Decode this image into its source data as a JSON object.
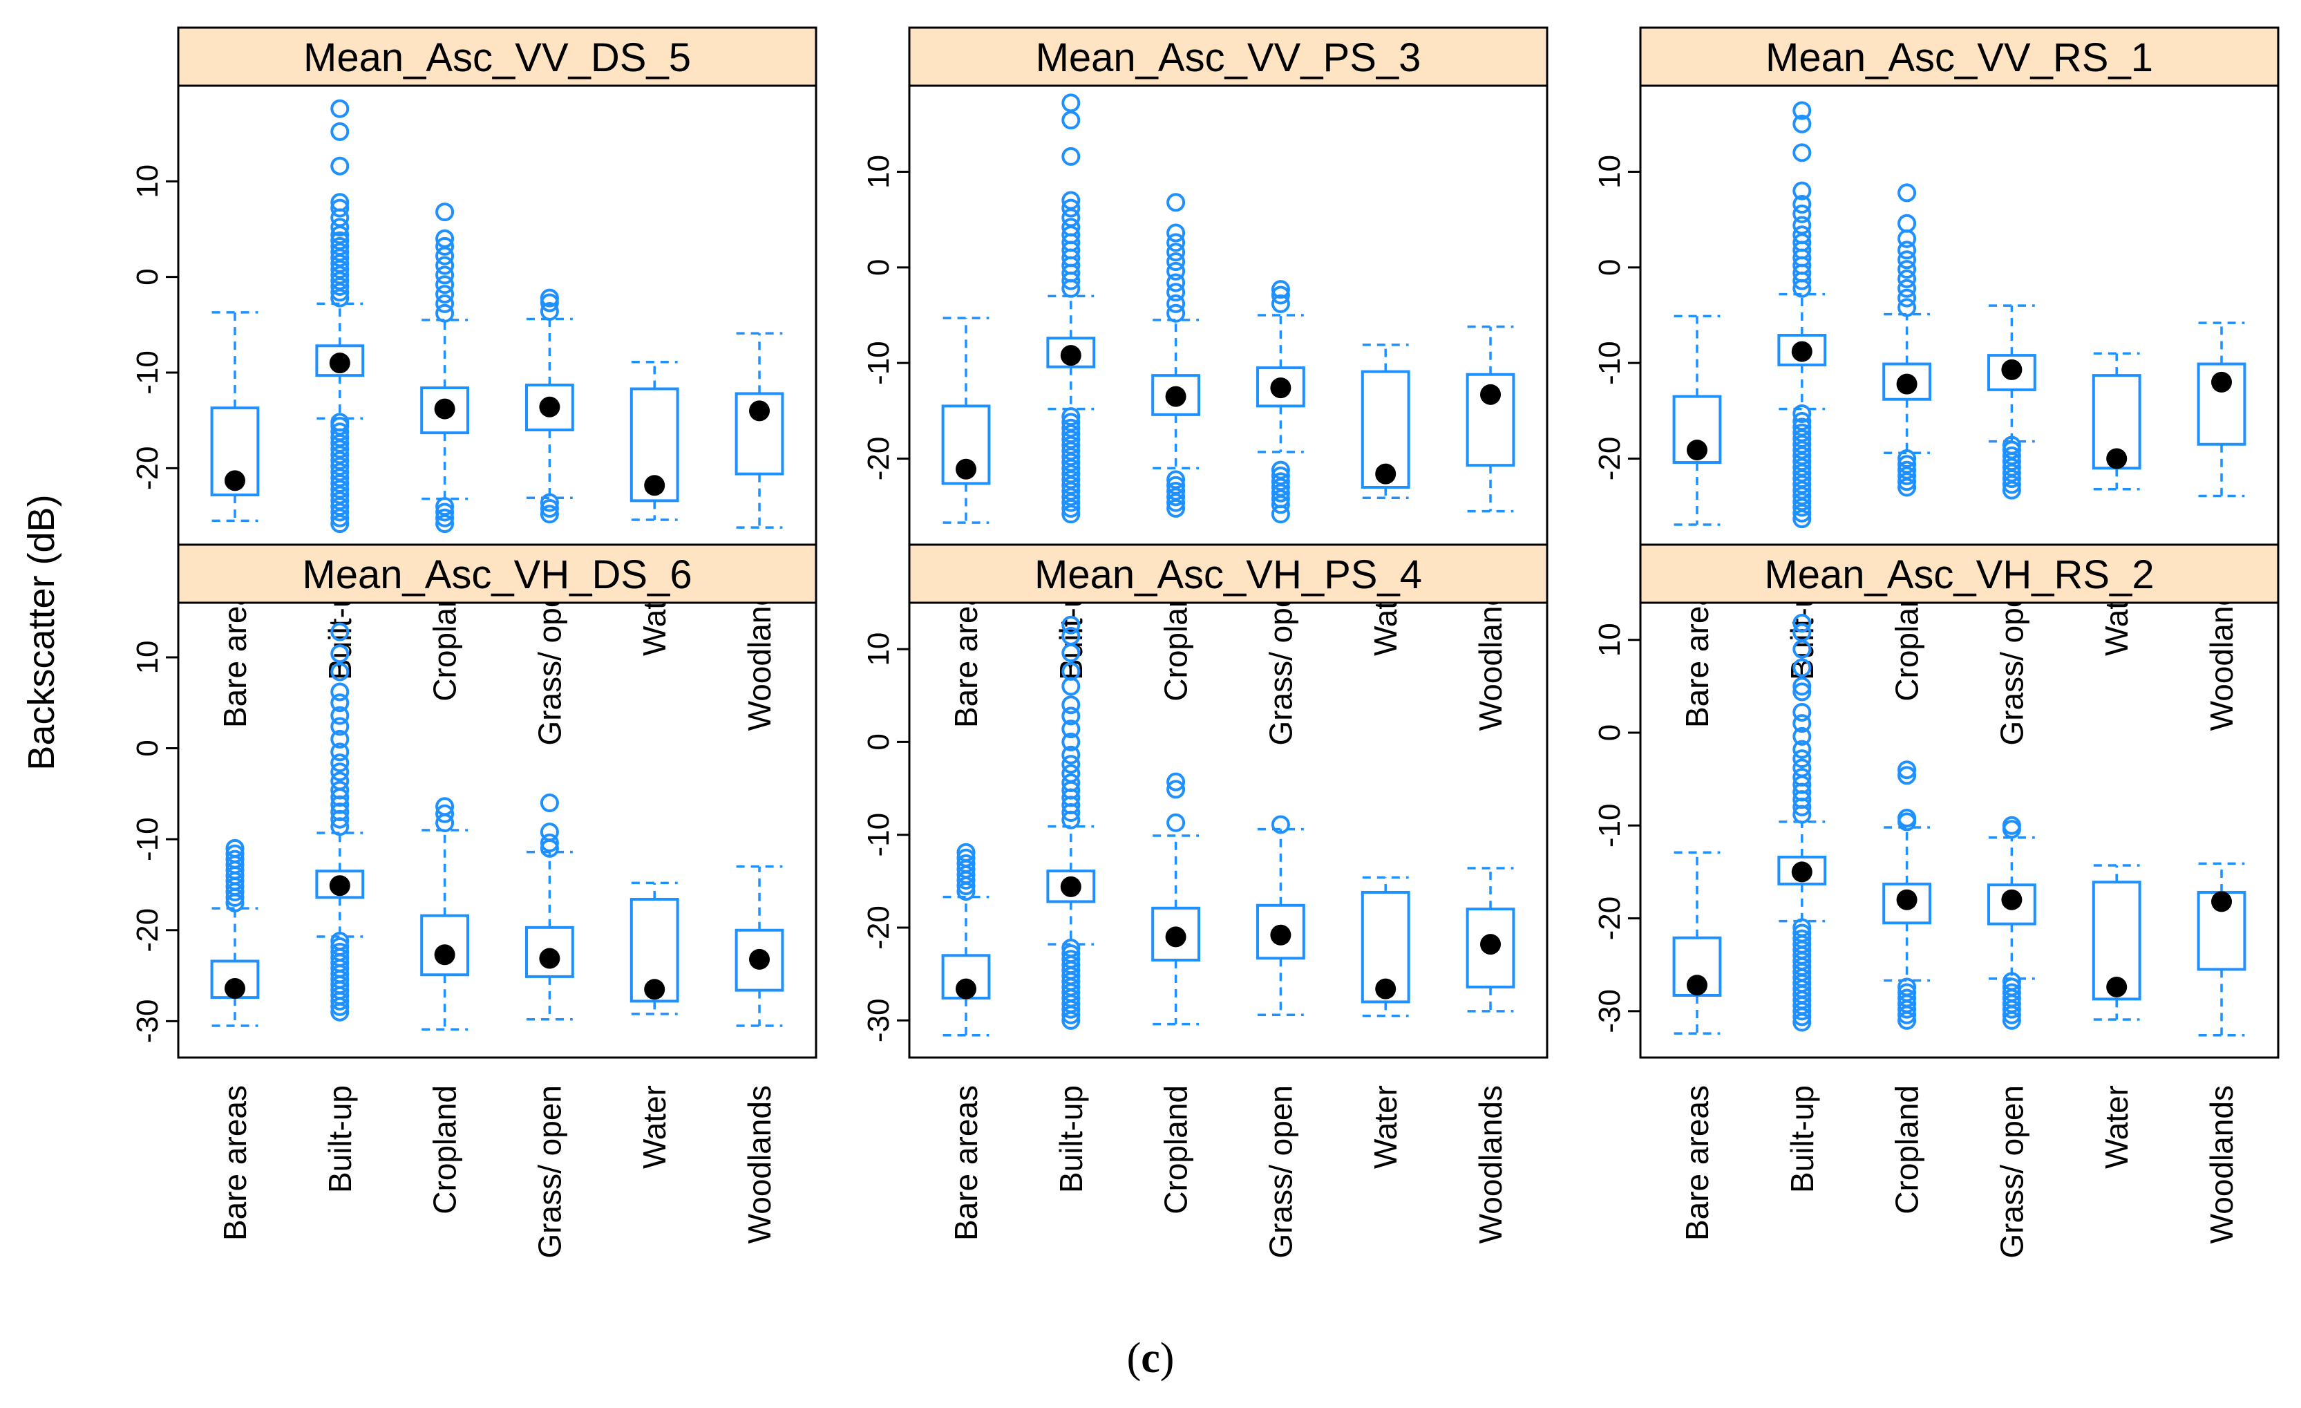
{
  "figure": {
    "caption_open": "(",
    "caption_letter": "c",
    "caption_close": ")",
    "ylabel": "Backscatter (dB)",
    "colors": {
      "strip": "#ffe4c4",
      "box": "#1e90ff",
      "median": "#000000",
      "axis": "#000000"
    }
  },
  "chart_data": [
    {
      "type": "box",
      "title": "Mean_Asc_VV_DS_5",
      "ylim": [
        -28,
        20
      ],
      "yticks": [
        -20,
        -10,
        0,
        10
      ],
      "categories": [
        "Bare areas",
        "Built-up",
        "Cropland",
        "Grass/ open",
        "Water",
        "Woodlands"
      ],
      "boxes": [
        {
          "lw": -25.5,
          "q1": -22.8,
          "med": -21.3,
          "q3": -13.7,
          "uw": -3.7,
          "out": []
        },
        {
          "lw": -14.8,
          "q1": -10.3,
          "med": -9.0,
          "q3": -7.2,
          "uw": -2.8,
          "out": [
            -25.8,
            -25.2,
            -24.6,
            -24.0,
            -23.4,
            -22.8,
            -22.2,
            -21.6,
            -21.0,
            -20.4,
            -19.8,
            -19.2,
            -18.6,
            -18.0,
            -17.4,
            -16.8,
            -16.2,
            -15.6,
            -15.2,
            -2.2,
            -1.6,
            -1.0,
            -0.4,
            0.2,
            0.8,
            1.4,
            2.0,
            2.6,
            3.2,
            3.8,
            4.4,
            5.2,
            6.2,
            7.2,
            7.8,
            11.6,
            15.2,
            17.6
          ]
        },
        {
          "lw": -23.2,
          "q1": -16.3,
          "med": -13.8,
          "q3": -11.6,
          "uw": -4.5,
          "out": [
            -25.8,
            -25.2,
            -24.6,
            -24.0,
            -3.8,
            -2.8,
            -1.8,
            -0.8,
            0.2,
            1.2,
            2.2,
            3.2,
            4.0,
            6.8
          ]
        },
        {
          "lw": -23.1,
          "q1": -16.0,
          "med": -13.6,
          "q3": -11.3,
          "uw": -4.4,
          "out": [
            -24.8,
            -24.2,
            -23.6,
            -3.6,
            -2.7,
            -2.2
          ]
        },
        {
          "lw": -25.4,
          "q1": -23.4,
          "med": -21.8,
          "q3": -11.7,
          "uw": -8.9,
          "out": []
        },
        {
          "lw": -26.2,
          "q1": -20.6,
          "med": -14.0,
          "q3": -12.2,
          "uw": -5.9,
          "out": []
        }
      ]
    },
    {
      "type": "box",
      "title": "Mean_Asc_VV_PS_3",
      "ylim": [
        -29,
        19
      ],
      "yticks": [
        -20,
        -10,
        0,
        10
      ],
      "categories": [
        "Bare areas",
        "Built-up",
        "Cropland",
        "Grass/ open",
        "Water",
        "Woodlands"
      ],
      "boxes": [
        {
          "lw": -26.7,
          "q1": -22.6,
          "med": -21.1,
          "q3": -14.5,
          "uw": -5.3,
          "out": []
        },
        {
          "lw": -14.8,
          "q1": -10.4,
          "med": -9.2,
          "q3": -7.4,
          "uw": -3.0,
          "out": [
            -25.8,
            -25.2,
            -24.6,
            -24.0,
            -23.4,
            -22.8,
            -22.2,
            -21.6,
            -21.0,
            -20.4,
            -19.8,
            -19.2,
            -18.6,
            -18.0,
            -17.4,
            -16.8,
            -16.2,
            -15.6,
            -2.2,
            -1.4,
            -0.6,
            0.2,
            1.0,
            1.8,
            2.6,
            3.4,
            4.2,
            5.2,
            6.2,
            7.0,
            11.6,
            15.4,
            17.2
          ]
        },
        {
          "lw": -21.0,
          "q1": -15.4,
          "med": -13.5,
          "q3": -11.3,
          "uw": -5.5,
          "out": [
            -25.2,
            -24.6,
            -24.0,
            -23.4,
            -22.8,
            -22.2,
            -4.8,
            -3.8,
            -2.6,
            -1.6,
            -0.4,
            0.6,
            1.6,
            2.6,
            3.6,
            6.8
          ]
        },
        {
          "lw": -19.3,
          "q1": -14.5,
          "med": -12.6,
          "q3": -10.5,
          "uw": -5.0,
          "out": [
            -25.8,
            -24.8,
            -24.2,
            -23.6,
            -23.0,
            -22.4,
            -21.8,
            -21.2,
            -3.8,
            -2.9,
            -2.3
          ]
        },
        {
          "lw": -24.1,
          "q1": -23.0,
          "med": -21.6,
          "q3": -10.9,
          "uw": -8.1,
          "out": []
        },
        {
          "lw": -25.5,
          "q1": -20.7,
          "med": -13.3,
          "q3": -11.2,
          "uw": -6.2,
          "out": []
        }
      ]
    },
    {
      "type": "box",
      "title": "Mean_Asc_VV_RS_1",
      "ylim": [
        -29,
        19
      ],
      "yticks": [
        -20,
        -10,
        0,
        10
      ],
      "categories": [
        "Bare areas",
        "Built-up",
        "Cropland",
        "Grass/ open",
        "Water",
        "Woodlands"
      ],
      "boxes": [
        {
          "lw": -26.9,
          "q1": -20.4,
          "med": -19.1,
          "q3": -13.5,
          "uw": -5.1,
          "out": []
        },
        {
          "lw": -14.8,
          "q1": -10.2,
          "med": -8.8,
          "q3": -7.1,
          "uw": -2.8,
          "out": [
            -26.3,
            -25.7,
            -25.1,
            -24.5,
            -23.9,
            -23.3,
            -22.7,
            -22.1,
            -21.5,
            -20.9,
            -20.3,
            -19.7,
            -19.1,
            -18.5,
            -17.9,
            -17.3,
            -16.7,
            -16.1,
            -15.3,
            -2.2,
            -1.4,
            -0.6,
            0.2,
            1.0,
            1.8,
            2.6,
            3.4,
            4.4,
            5.6,
            6.6,
            8.0,
            12.0,
            15.0,
            16.4
          ]
        },
        {
          "lw": -19.4,
          "q1": -13.8,
          "med": -12.2,
          "q3": -10.1,
          "uw": -4.9,
          "out": [
            -23.0,
            -22.4,
            -21.8,
            -21.2,
            -20.6,
            -20.0,
            -4.2,
            -3.2,
            -2.2,
            -1.2,
            -0.2,
            0.8,
            1.8,
            3.0,
            4.6,
            7.8
          ]
        },
        {
          "lw": -18.2,
          "q1": -12.8,
          "med": -10.7,
          "q3": -9.2,
          "uw": -4.0,
          "out": [
            -23.3,
            -22.7,
            -22.1,
            -21.5,
            -20.9,
            -20.3,
            -19.7,
            -19.1,
            -18.6
          ]
        },
        {
          "lw": -23.2,
          "q1": -21.0,
          "med": -20.0,
          "q3": -11.3,
          "uw": -9.0,
          "out": []
        },
        {
          "lw": -23.9,
          "q1": -18.5,
          "med": -12.0,
          "q3": -10.1,
          "uw": -5.8,
          "out": []
        }
      ]
    },
    {
      "type": "box",
      "title": "Mean_Asc_VH_DS_6",
      "ylim": [
        -34,
        16
      ],
      "yticks": [
        -30,
        -20,
        -10,
        0,
        10
      ],
      "categories": [
        "Bare areas",
        "Built-up",
        "Cropland",
        "Grass/ open",
        "Water",
        "Woodlands"
      ],
      "boxes": [
        {
          "lw": -30.5,
          "q1": -27.4,
          "med": -26.4,
          "q3": -23.4,
          "uw": -17.6,
          "out": [
            -17.0,
            -16.4,
            -15.8,
            -15.2,
            -14.6,
            -14.0,
            -13.4,
            -12.8,
            -12.2,
            -11.6,
            -11.0
          ]
        },
        {
          "lw": -20.7,
          "q1": -16.4,
          "med": -15.1,
          "q3": -13.5,
          "uw": -9.3,
          "out": [
            -29.0,
            -28.4,
            -27.8,
            -27.2,
            -26.6,
            -26.0,
            -25.4,
            -24.8,
            -24.2,
            -23.6,
            -23.0,
            -22.4,
            -21.8,
            -21.2,
            -8.6,
            -7.8,
            -7.0,
            -6.2,
            -5.4,
            -4.6,
            -3.6,
            -2.6,
            -1.6,
            -0.4,
            1.0,
            2.4,
            3.6,
            5.0,
            6.2,
            8.4,
            10.4,
            12.8
          ]
        },
        {
          "lw": -30.9,
          "q1": -24.9,
          "med": -22.7,
          "q3": -18.4,
          "uw": -9.0,
          "out": [
            -8.2,
            -7.2,
            -6.4
          ]
        },
        {
          "lw": -29.8,
          "q1": -25.1,
          "med": -23.1,
          "q3": -19.7,
          "uw": -11.4,
          "out": [
            -11.0,
            -10.4,
            -9.2,
            -6.0
          ]
        },
        {
          "lw": -29.2,
          "q1": -27.8,
          "med": -26.5,
          "q3": -16.6,
          "uw": -14.8,
          "out": []
        },
        {
          "lw": -30.5,
          "q1": -26.6,
          "med": -23.2,
          "q3": -20.0,
          "uw": -13.0,
          "out": []
        }
      ]
    },
    {
      "type": "box",
      "title": "Mean_Asc_VH_PS_4",
      "ylim": [
        -34,
        15
      ],
      "yticks": [
        -30,
        -20,
        -10,
        0,
        10
      ],
      "categories": [
        "Bare areas",
        "Built-up",
        "Cropland",
        "Grass/ open",
        "Water",
        "Woodlands"
      ],
      "boxes": [
        {
          "lw": -31.6,
          "q1": -27.6,
          "med": -26.6,
          "q3": -23.0,
          "uw": -16.7,
          "out": [
            -16.1,
            -15.5,
            -14.9,
            -14.3,
            -13.7,
            -13.1,
            -12.5,
            -11.9
          ]
        },
        {
          "lw": -21.8,
          "q1": -17.2,
          "med": -15.6,
          "q3": -13.9,
          "uw": -9.1,
          "out": [
            -30.0,
            -29.4,
            -28.8,
            -28.2,
            -27.6,
            -27.0,
            -26.4,
            -25.8,
            -25.2,
            -24.6,
            -24.0,
            -23.4,
            -22.8,
            -22.2,
            -8.4,
            -7.6,
            -6.8,
            -6.0,
            -5.2,
            -4.4,
            -3.4,
            -2.4,
            -1.4,
            0.0,
            1.4,
            2.8,
            4.0,
            6.0,
            7.6,
            9.6,
            11.4,
            12.6
          ]
        },
        {
          "lw": -30.4,
          "q1": -23.5,
          "med": -21.0,
          "q3": -17.9,
          "uw": -10.1,
          "out": [
            -8.7,
            -5.1,
            -4.3
          ]
        },
        {
          "lw": -29.4,
          "q1": -23.3,
          "med": -20.8,
          "q3": -17.6,
          "uw": -9.4,
          "out": [
            -8.9
          ]
        },
        {
          "lw": -29.5,
          "q1": -28.0,
          "med": -26.6,
          "q3": -16.2,
          "uw": -14.6,
          "out": []
        },
        {
          "lw": -29.0,
          "q1": -26.4,
          "med": -21.8,
          "q3": -18.0,
          "uw": -13.6,
          "out": []
        }
      ]
    },
    {
      "type": "box",
      "title": "Mean_Asc_VH_RS_2",
      "ylim": [
        -35,
        14
      ],
      "yticks": [
        -30,
        -20,
        -10,
        0,
        10
      ],
      "categories": [
        "Bare areas",
        "Built-up",
        "Cropland",
        "Grass/ open",
        "Water",
        "Woodlands"
      ],
      "boxes": [
        {
          "lw": -32.4,
          "q1": -28.3,
          "med": -27.2,
          "q3": -22.1,
          "uw": -12.9,
          "out": []
        },
        {
          "lw": -20.3,
          "q1": -16.3,
          "med": -15.0,
          "q3": -13.4,
          "uw": -9.6,
          "out": [
            -31.2,
            -30.6,
            -30.0,
            -29.4,
            -28.8,
            -28.2,
            -27.6,
            -27.0,
            -26.4,
            -25.8,
            -25.2,
            -24.6,
            -24.0,
            -23.4,
            -22.8,
            -22.2,
            -21.6,
            -21.0,
            -8.8,
            -8.0,
            -7.2,
            -6.4,
            -5.6,
            -4.8,
            -3.8,
            -2.8,
            -1.8,
            -0.4,
            1.0,
            2.2,
            4.4,
            5.0,
            7.0,
            9.0,
            10.8,
            11.8
          ]
        },
        {
          "lw": -26.7,
          "q1": -20.5,
          "med": -18.0,
          "q3": -16.3,
          "uw": -10.2,
          "out": [
            -31.0,
            -30.4,
            -29.8,
            -29.2,
            -28.6,
            -28.0,
            -27.4,
            -9.6,
            -9.2,
            -4.6,
            -4.0
          ]
        },
        {
          "lw": -26.5,
          "q1": -20.6,
          "med": -18.0,
          "q3": -16.4,
          "uw": -11.3,
          "out": [
            -31.0,
            -30.4,
            -29.8,
            -29.2,
            -28.6,
            -28.0,
            -27.4,
            -26.8,
            -10.4,
            -10.0
          ]
        },
        {
          "lw": -30.9,
          "q1": -28.7,
          "med": -27.4,
          "q3": -16.1,
          "uw": -14.3,
          "out": []
        },
        {
          "lw": -32.6,
          "q1": -25.5,
          "med": -18.2,
          "q3": -17.2,
          "uw": -14.1,
          "out": []
        }
      ]
    }
  ]
}
